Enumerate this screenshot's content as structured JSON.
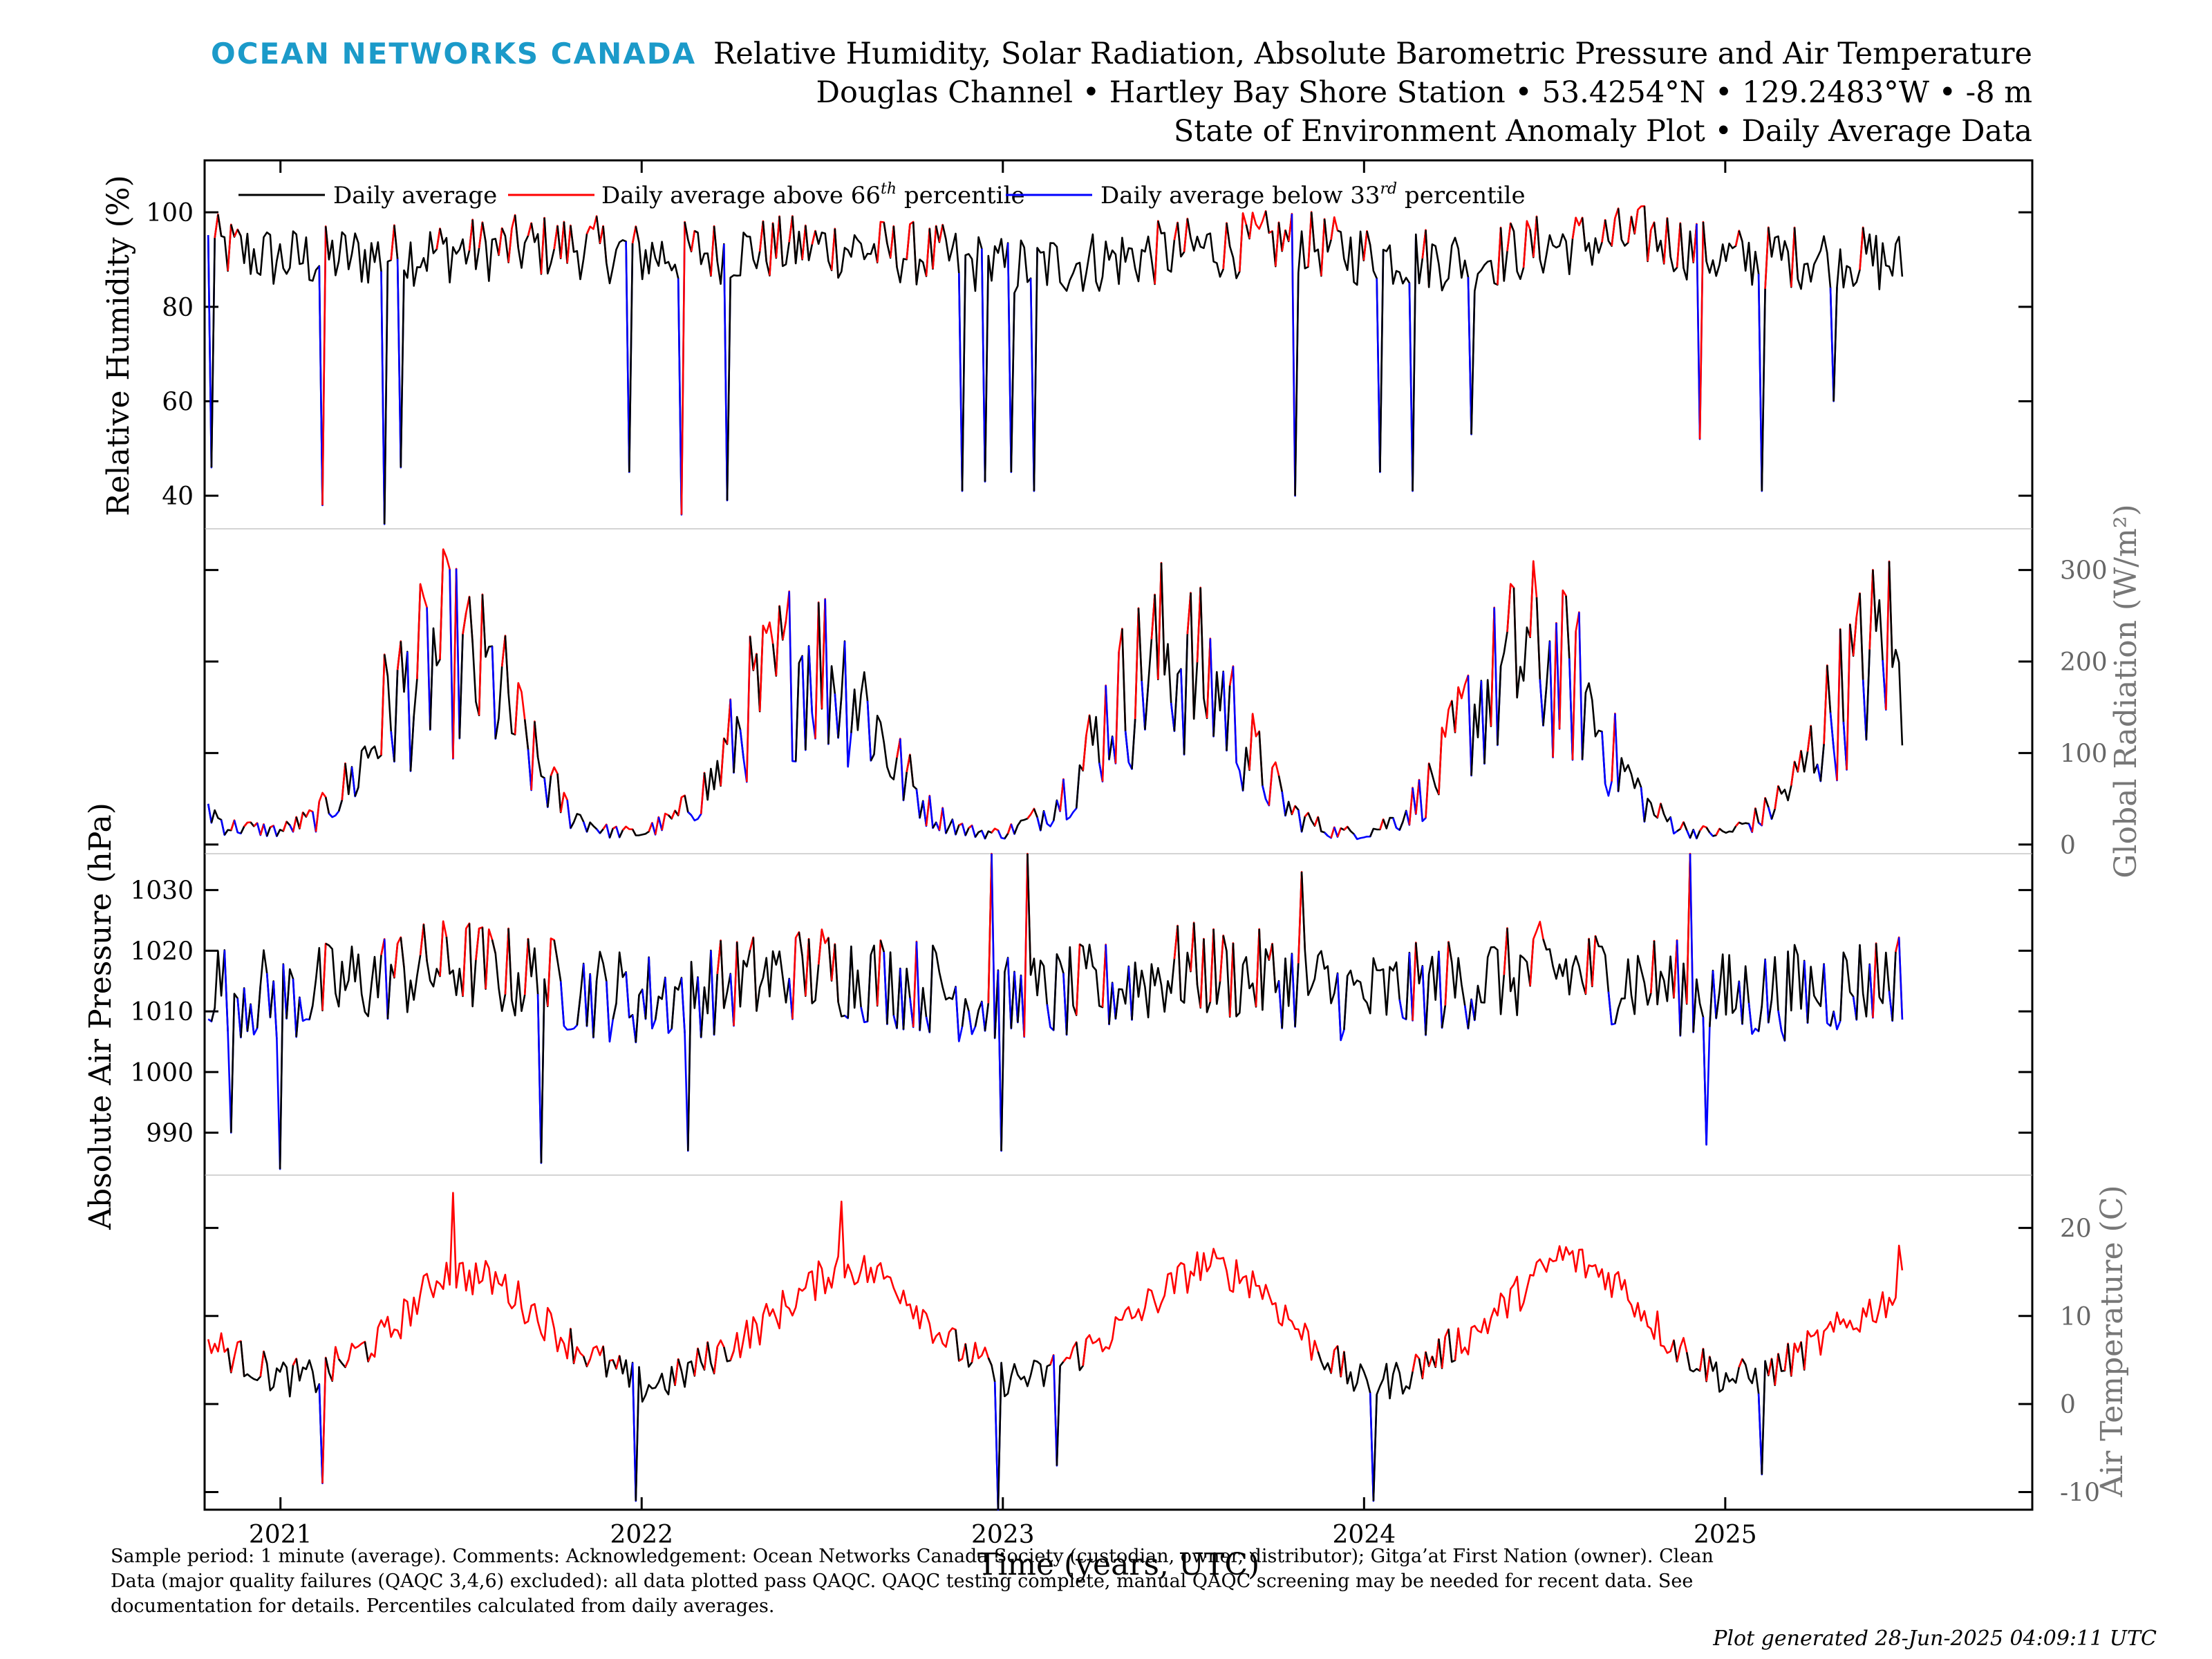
{
  "brand": "OCEAN NETWORKS CANADA",
  "title_lines": [
    "Relative Humidity, Solar Radiation, Absolute Barometric Pressure and Air Temperature",
    "Douglas Channel • Hartley Bay Shore Station • 53.4254°N • 129.2483°W • -8 m",
    "State of Environment Anomaly Plot • Daily Average Data"
  ],
  "legend": {
    "daily": "Daily average",
    "above_prefix": "Daily average above 66",
    "above_sup": "th",
    "above_suffix": " percentile",
    "below_prefix": "Daily average below 33",
    "below_sup": "rd",
    "below_suffix": " percentile"
  },
  "colors": {
    "daily": "#000000",
    "above": "#ff0000",
    "below": "#0000ff",
    "brand": "#1b9ac9",
    "right_axis": "#666666"
  },
  "footer_lines": [
    "Sample period: 1 minute (average). Comments: Acknowledgement: Ocean Networks Canada Society (custodian, owner, distributor); Gitga’at First Nation (owner). Clean",
    "Data (major quality failures (QAQC 3,4,6) excluded): all data plotted pass QAQC. QAQC testing complete, manual QAQC screening may be needed for recent data. See",
    "documentation for details. Percentiles calculated from daily averages."
  ],
  "generated": "Plot generated 28-Jun-2025 04:09:11 UTC",
  "chart_data": [
    {
      "type": "line",
      "name": "humidity",
      "ylabel": "Relative Humidity (%)",
      "yaxis": "left",
      "ylim": [
        33,
        111
      ],
      "yticks": [
        40,
        60,
        80,
        100
      ],
      "xlim": [
        2020.79,
        2025.85
      ],
      "x_anchor": [
        2020.8,
        2021.0,
        2021.3,
        2021.5,
        2021.8,
        2022.0,
        2022.3,
        2022.5,
        2022.8,
        2023.0,
        2023.3,
        2023.5,
        2023.8,
        2024.0,
        2024.3,
        2024.5,
        2024.8,
        2025.0,
        2025.3,
        2025.49
      ],
      "y_anchor": [
        93,
        90,
        91,
        92,
        93,
        91,
        92,
        93,
        91,
        88,
        90,
        92,
        94,
        91,
        90,
        93,
        95,
        90,
        91,
        89
      ],
      "noise": 7,
      "spikes": [
        [
          2020.81,
          46
        ],
        [
          2021.12,
          38
        ],
        [
          2021.29,
          34
        ],
        [
          2021.33,
          46
        ],
        [
          2021.97,
          45
        ],
        [
          2022.11,
          36
        ],
        [
          2022.24,
          39
        ],
        [
          2022.89,
          41
        ],
        [
          2022.95,
          43
        ],
        [
          2023.02,
          45
        ],
        [
          2023.09,
          41
        ],
        [
          2023.81,
          40
        ],
        [
          2024.04,
          45
        ],
        [
          2024.13,
          41
        ],
        [
          2024.3,
          53
        ],
        [
          2024.93,
          52
        ],
        [
          2025.1,
          41
        ],
        [
          2025.3,
          60
        ]
      ],
      "above_threshold": 96,
      "below_threshold": 82
    },
    {
      "type": "line",
      "name": "solar",
      "ylabel": "Global Radiation (W/m²)",
      "yaxis": "right",
      "ylim": [
        -10,
        345
      ],
      "yticks": [
        0,
        100,
        200,
        300
      ],
      "xlim": [
        2020.79,
        2025.85
      ],
      "x_anchor": [
        2020.8,
        2020.85,
        2021.0,
        2021.1,
        2021.2,
        2021.3,
        2021.45,
        2021.6,
        2021.7,
        2021.8,
        2021.9,
        2022.0,
        2022.1,
        2022.2,
        2022.3,
        2022.45,
        2022.6,
        2022.7,
        2022.8,
        2022.9,
        2023.0,
        2023.1,
        2023.2,
        2023.3,
        2023.45,
        2023.6,
        2023.7,
        2023.8,
        2023.9,
        2024.0,
        2024.1,
        2024.2,
        2024.3,
        2024.45,
        2024.6,
        2024.7,
        2024.8,
        2024.9,
        2025.0,
        2025.1,
        2025.2,
        2025.3,
        2025.45,
        2025.49
      ],
      "y_anchor": [
        40,
        20,
        15,
        30,
        70,
        150,
        210,
        170,
        90,
        35,
        15,
        12,
        30,
        70,
        150,
        210,
        170,
        90,
        35,
        15,
        12,
        30,
        70,
        150,
        210,
        170,
        90,
        35,
        15,
        12,
        30,
        70,
        150,
        210,
        170,
        90,
        35,
        15,
        12,
        30,
        70,
        150,
        230,
        150
      ],
      "noise_frac": 0.55,
      "above_threshold_frac": 1.25,
      "below_threshold_frac": 0.72
    },
    {
      "type": "line",
      "name": "pressure",
      "ylabel": "Absolute Air Pressure (hPa)",
      "yaxis": "left",
      "ylim": [
        983,
        1036
      ],
      "yticks": [
        990,
        1000,
        1010,
        1020,
        1030
      ],
      "xlim": [
        2020.79,
        2025.85
      ],
      "x_anchor": [
        2020.8,
        2021.0,
        2021.3,
        2021.5,
        2021.8,
        2022.0,
        2022.3,
        2022.5,
        2022.8,
        2023.0,
        2023.3,
        2023.5,
        2023.8,
        2024.0,
        2024.3,
        2024.5,
        2024.8,
        2025.0,
        2025.3,
        2025.49
      ],
      "y_anchor": [
        1015,
        1012,
        1016,
        1018,
        1014,
        1012,
        1015,
        1017,
        1014,
        1011,
        1014,
        1017,
        1015,
        1012,
        1015,
        1017,
        1015,
        1012,
        1014,
        1016
      ],
      "noise": 8,
      "spikes": [
        [
          2020.86,
          990
        ],
        [
          2021.0,
          984
        ],
        [
          2021.72,
          985
        ],
        [
          2022.13,
          987
        ],
        [
          2022.97,
          1036
        ],
        [
          2023.0,
          987
        ],
        [
          2023.07,
          1036
        ],
        [
          2023.83,
          1033
        ],
        [
          2024.9,
          1036
        ],
        [
          2024.95,
          988
        ]
      ],
      "above_threshold": 1021,
      "below_threshold": 1009
    },
    {
      "type": "line",
      "name": "temperature",
      "ylabel": "Air Temperature (C)",
      "yaxis": "right",
      "ylim": [
        -12,
        26
      ],
      "yticks": [
        -10,
        0,
        10,
        20
      ],
      "xlim": [
        2020.79,
        2025.85
      ],
      "x_anchor": [
        2020.8,
        2021.0,
        2021.1,
        2021.3,
        2021.45,
        2021.6,
        2021.8,
        2022.0,
        2022.1,
        2022.3,
        2022.55,
        2022.7,
        2022.85,
        2023.0,
        2023.1,
        2023.3,
        2023.55,
        2023.7,
        2023.85,
        2024.0,
        2024.1,
        2024.3,
        2024.55,
        2024.7,
        2024.85,
        2025.0,
        2025.1,
        2025.3,
        2025.49
      ],
      "y_anchor": [
        7,
        3,
        3,
        8,
        15,
        14,
        7,
        2,
        3,
        8,
        16,
        14,
        7,
        3,
        3,
        8,
        16,
        14,
        7,
        2,
        3,
        8,
        17,
        14,
        7,
        3,
        3,
        8,
        13
      ],
      "noise": 2.2,
      "spikes": [
        [
          2021.12,
          -9
        ],
        [
          2021.48,
          24
        ],
        [
          2021.98,
          -11
        ],
        [
          2022.55,
          23
        ],
        [
          2022.99,
          -12
        ],
        [
          2023.15,
          -7
        ],
        [
          2024.03,
          -11
        ],
        [
          2025.1,
          -8
        ],
        [
          2025.48,
          18
        ]
      ],
      "above_threshold": 5,
      "below_threshold": -5
    }
  ],
  "x_axis": {
    "label": "Time (years, UTC)",
    "ticks": [
      "2021",
      "2022",
      "2023",
      "2024",
      "2025"
    ],
    "tick_values": [
      2021,
      2022,
      2023,
      2024,
      2025
    ]
  }
}
